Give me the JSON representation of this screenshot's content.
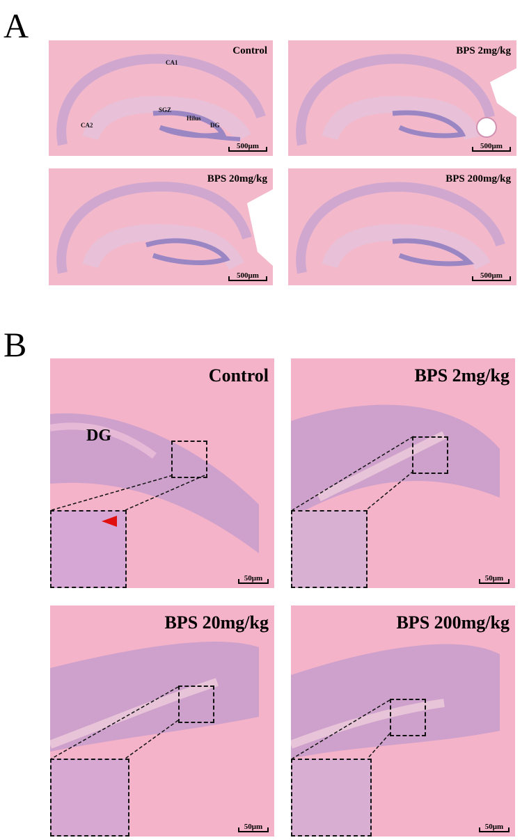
{
  "panelA": {
    "letter": "A",
    "tiles": [
      {
        "label": "Control",
        "scale": "500μm"
      },
      {
        "label": "BPS 2mg/kg",
        "scale": "500μm"
      },
      {
        "label": "BPS 20mg/kg",
        "scale": "500μm"
      },
      {
        "label": "BPS 200mg/kg",
        "scale": "500μm"
      }
    ],
    "annotations": {
      "ca1": "CA1",
      "ca2": "CA2",
      "sgz": "SGZ",
      "hilus": "Hilus",
      "dg": "DG"
    }
  },
  "panelB": {
    "letter": "B",
    "tiles": [
      {
        "label": "Control",
        "scale": "50μm"
      },
      {
        "label": "BPS 2mg/kg",
        "scale": "50μm"
      },
      {
        "label": "BPS 20mg/kg",
        "scale": "50μm"
      },
      {
        "label": "BPS 200mg/kg",
        "scale": "50μm"
      }
    ],
    "annotations": {
      "dg": "DG"
    }
  },
  "colors": {
    "tissue": "#f3b5c8",
    "nuclei": "#b392c8",
    "inset_border": "#111111",
    "arrow": "#e01010"
  }
}
